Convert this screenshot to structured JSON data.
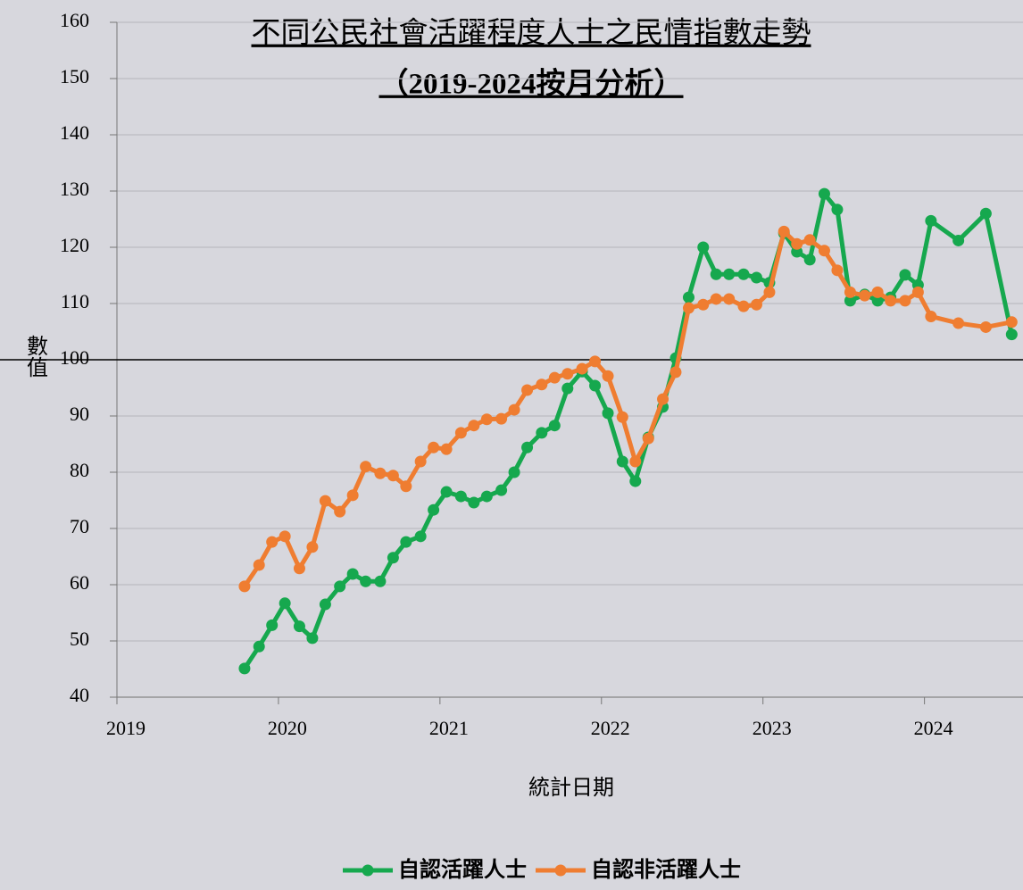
{
  "chart_data": {
    "type": "line",
    "title": [
      "不同公民社會活躍程度人士之民情指數走勢",
      "（2019-2024按月分析）"
    ],
    "x_label": "統計日期",
    "y_label": "數值",
    "x": [
      2019.79,
      2019.88,
      2019.96,
      2020.04,
      2020.13,
      2020.21,
      2020.29,
      2020.38,
      2020.46,
      2020.54,
      2020.63,
      2020.71,
      2020.79,
      2020.88,
      2020.96,
      2021.04,
      2021.13,
      2021.21,
      2021.29,
      2021.38,
      2021.46,
      2021.54,
      2021.63,
      2021.71,
      2021.79,
      2021.88,
      2021.96,
      2022.04,
      2022.13,
      2022.21,
      2022.29,
      2022.38,
      2022.46,
      2022.54,
      2022.63,
      2022.71,
      2022.79,
      2022.88,
      2022.96,
      2023.04,
      2023.13,
      2023.21,
      2023.29,
      2023.38,
      2023.46,
      2023.54,
      2023.63,
      2023.71,
      2023.79,
      2023.88,
      2023.96,
      2024.04,
      2024.21,
      2024.38,
      2024.54
    ],
    "series": [
      {
        "name": "自認活躍人士",
        "color": "#16a84e",
        "values": [
          45.1,
          49,
          52.8,
          56.7,
          52.6,
          50.5,
          56.5,
          59.7,
          61.9,
          60.6,
          60.6,
          64.8,
          67.6,
          68.6,
          73.3,
          76.5,
          75.7,
          74.6,
          75.7,
          76.8,
          80,
          84.4,
          87,
          88.3,
          94.9,
          97.9,
          95.4,
          90.5,
          81.9,
          78.4,
          86.2,
          91.6,
          100.3,
          111.1,
          120,
          115.2,
          115.2,
          115.2,
          114.6,
          113.7,
          122.5,
          119.2,
          117.8,
          129.5,
          126.7,
          110.5,
          111.6,
          110.5,
          111.1,
          115.1,
          113.3,
          124.7,
          121.2,
          126,
          104.5
        ]
      },
      {
        "name": "自認非活躍人士",
        "color": "#ef7d31",
        "values": [
          59.7,
          63.5,
          67.6,
          68.6,
          62.9,
          66.7,
          74.9,
          73,
          75.9,
          81,
          79.8,
          79.4,
          77.5,
          81.9,
          84.4,
          84.1,
          87,
          88.3,
          89.4,
          89.5,
          91.1,
          94.6,
          95.6,
          96.8,
          97.5,
          98.4,
          99.7,
          97.1,
          89.8,
          81.9,
          86,
          93,
          97.8,
          109.2,
          109.8,
          110.8,
          110.8,
          109.5,
          109.8,
          112,
          122.8,
          120.6,
          121.3,
          119.4,
          115.9,
          112,
          111.4,
          112,
          110.5,
          110.5,
          112,
          107.7,
          106.5,
          105.8,
          106.7
        ]
      }
    ],
    "xlim": [
      2019,
      2024.61
    ],
    "xticks": [
      2019,
      2020,
      2021,
      2022,
      2023,
      2024
    ],
    "ylim": [
      40,
      160
    ],
    "yticks": [
      40,
      50,
      60,
      70,
      80,
      90,
      100,
      110,
      120,
      130,
      140,
      150,
      160
    ],
    "reference_line": 100,
    "grid": true,
    "legend": "bottom"
  }
}
